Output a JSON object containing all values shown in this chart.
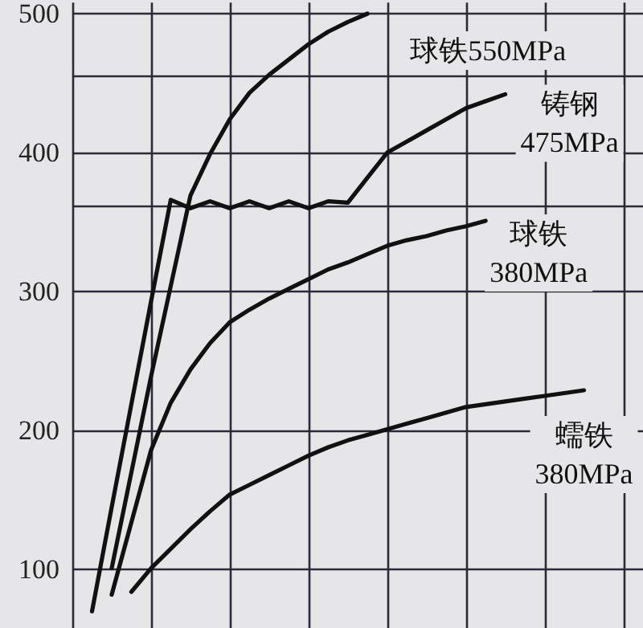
{
  "chart_data": {
    "type": "line",
    "categories": [
      null,
      null,
      null,
      null,
      null,
      null,
      null,
      null,
      null,
      null,
      null,
      null,
      null,
      null,
      null,
      null,
      null,
      null,
      null,
      null,
      null,
      null,
      null,
      null,
      null,
      null,
      null,
      null,
      null,
      null
    ],
    "ylim": [
      58,
      508
    ],
    "yticks": [
      100,
      200,
      300,
      {
        "value": 362,
        "label": null
      },
      400,
      {
        "value": 455,
        "label": null
      },
      500
    ],
    "grid": true,
    "tick_labels": "y",
    "legend": false,
    "marker": "none",
    "line_style": "solid",
    "series": [
      {
        "name": "球铁550MPa",
        "color": "#111111",
        "values": [
          null,
          null,
          101,
          170,
          239,
          304,
          369,
          399,
          424,
          443,
          456,
          467,
          478,
          487,
          494,
          500,
          null,
          null,
          null,
          null,
          null,
          null,
          null,
          null,
          null,
          null,
          null,
          null,
          null,
          null
        ]
      },
      {
        "name": "铸钢\n475MPa",
        "color": "#111111",
        "values": [
          null,
          70,
          145,
          219,
          293,
          366,
          360,
          365,
          360,
          365,
          360,
          365,
          360,
          365,
          364,
          382,
          400,
          408,
          416,
          424,
          432,
          437,
          442,
          null,
          null,
          null,
          null,
          null,
          null,
          null
        ]
      },
      {
        "name": "球铁\n380MPa",
        "color": "#111111",
        "values": [
          null,
          null,
          82,
          134,
          186,
          220,
          244,
          263,
          278,
          287,
          295,
          302,
          309,
          316,
          321,
          327,
          333,
          337,
          340,
          344,
          347,
          351,
          null,
          null,
          null,
          null,
          null,
          null,
          null,
          null
        ]
      },
      {
        "name": "蠕铁\n380MPa",
        "color": "#111111",
        "values": [
          null,
          null,
          null,
          84,
          101,
          115,
          129,
          142,
          154,
          161,
          168,
          175,
          182,
          188,
          193,
          197,
          201,
          205,
          209,
          213,
          217,
          219,
          221,
          223,
          225,
          227,
          229,
          null,
          null,
          null
        ]
      }
    ]
  }
}
